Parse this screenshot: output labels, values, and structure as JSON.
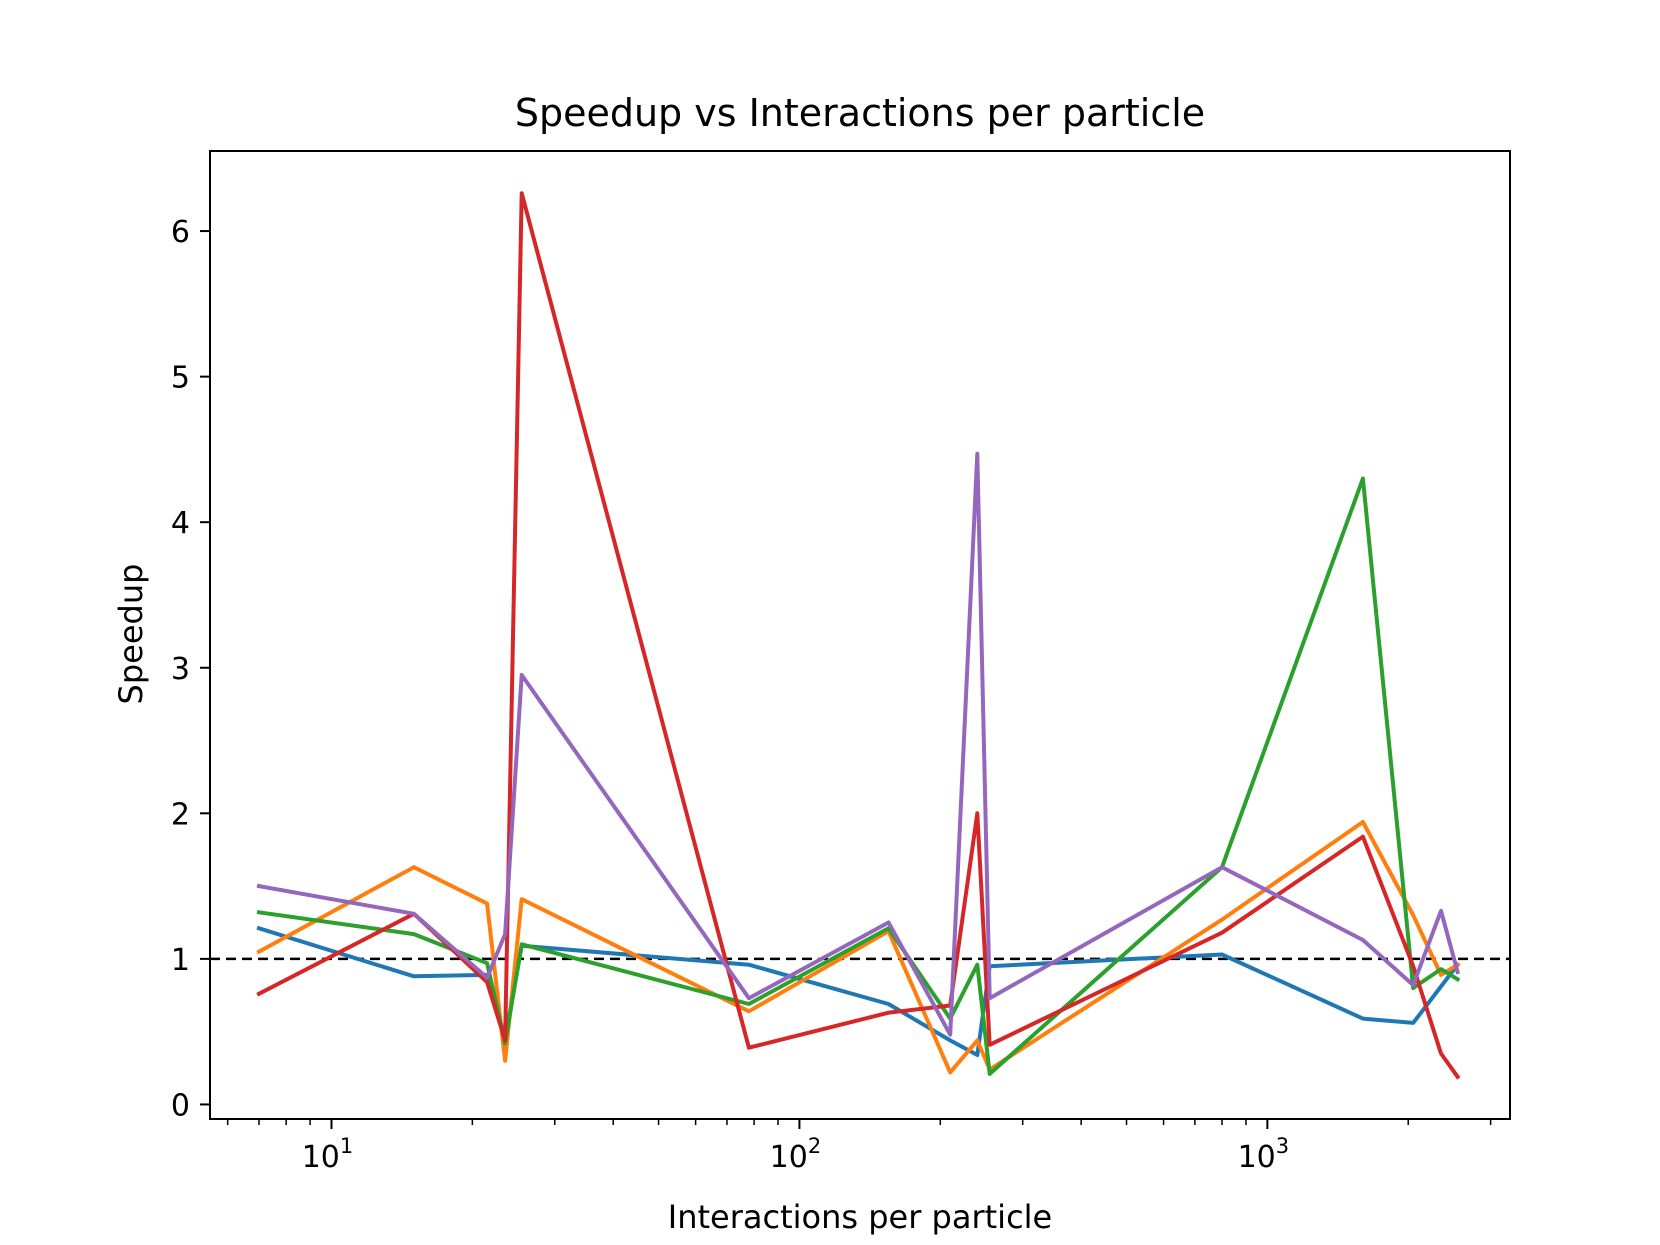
{
  "chart_data": {
    "type": "line",
    "title": "Speedup vs Interactions per particle",
    "xlabel": "Interactions per particle",
    "ylabel": "Speedup",
    "xscale": "log",
    "xlim": [
      5.5,
      3300
    ],
    "ylim": [
      -0.1,
      6.55
    ],
    "yticks": [
      {
        "value": 0,
        "label": "0"
      },
      {
        "value": 1,
        "label": "1"
      },
      {
        "value": 2,
        "label": "2"
      },
      {
        "value": 3,
        "label": "3"
      },
      {
        "value": 4,
        "label": "4"
      },
      {
        "value": 5,
        "label": "5"
      },
      {
        "value": 6,
        "label": "6"
      }
    ],
    "xticks": [
      {
        "value": 10,
        "base": "10",
        "exp": "1"
      },
      {
        "value": 100,
        "base": "10",
        "exp": "2"
      },
      {
        "value": 1000,
        "base": "10",
        "exp": "3"
      }
    ],
    "grid": false,
    "legend": "none",
    "reference_line": {
      "y": 1,
      "style": "dashed",
      "color": "#000000"
    },
    "series": [
      {
        "color": "#1f77b4",
        "x": [
          7,
          15,
          21.5,
          23.5,
          25.5,
          78,
          155,
          210,
          240,
          255,
          800,
          1600,
          2050,
          2550
        ],
        "y": [
          1.21,
          0.88,
          0.89,
          0.45,
          1.09,
          0.96,
          0.69,
          0.44,
          0.34,
          0.95,
          1.03,
          0.59,
          0.56,
          0.96
        ]
      },
      {
        "color": "#ff7f0e",
        "x": [
          7,
          15,
          21.5,
          23.5,
          25.5,
          78,
          155,
          210,
          240,
          255,
          800,
          1600,
          2050,
          2350,
          2550
        ],
        "y": [
          1.05,
          1.63,
          1.38,
          0.3,
          1.41,
          0.64,
          1.19,
          0.22,
          0.44,
          0.24,
          1.27,
          1.94,
          1.3,
          0.89,
          0.96
        ]
      },
      {
        "color": "#2ca02c",
        "x": [
          7,
          15,
          21.5,
          23.5,
          25.5,
          78,
          155,
          210,
          240,
          255,
          800,
          1600,
          2050,
          2350,
          2550
        ],
        "y": [
          1.32,
          1.17,
          0.97,
          0.42,
          1.1,
          0.69,
          1.21,
          0.59,
          0.96,
          0.21,
          1.63,
          4.3,
          0.8,
          0.93,
          0.86
        ]
      },
      {
        "color": "#d62728",
        "x": [
          7,
          15,
          21.5,
          23.5,
          25.5,
          78,
          155,
          210,
          240,
          255,
          800,
          1600,
          2050,
          2350,
          2550
        ],
        "y": [
          0.76,
          1.31,
          0.84,
          0.44,
          6.26,
          0.39,
          0.63,
          0.68,
          2.0,
          0.41,
          1.18,
          1.84,
          0.95,
          0.35,
          0.19
        ]
      },
      {
        "color": "#9467bd",
        "x": [
          7,
          15,
          21.5,
          23.5,
          25.5,
          78,
          155,
          210,
          240,
          255,
          800,
          1600,
          2050,
          2350,
          2550
        ],
        "y": [
          1.5,
          1.31,
          0.87,
          1.17,
          2.95,
          0.73,
          1.25,
          0.48,
          4.47,
          0.73,
          1.63,
          1.13,
          0.82,
          1.33,
          0.91
        ]
      }
    ]
  }
}
